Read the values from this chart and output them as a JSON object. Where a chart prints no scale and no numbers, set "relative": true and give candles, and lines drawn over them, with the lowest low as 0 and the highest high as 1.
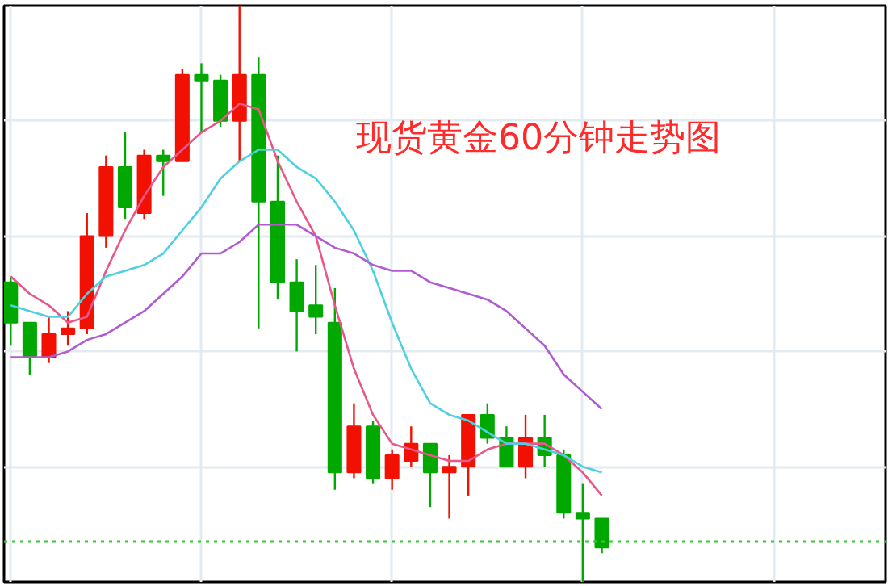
{
  "chart_data": {
    "type": "candlestick",
    "title": "现货黄金60分钟走势图",
    "relative": true,
    "grid": true,
    "categories": [
      null,
      null,
      null,
      null,
      null,
      null,
      null,
      null,
      null,
      null,
      null,
      null,
      null,
      null,
      null,
      null,
      null,
      null,
      null,
      null,
      null,
      null,
      null,
      null,
      null,
      null,
      null,
      null,
      null,
      null,
      null,
      null
    ],
    "ohlc": [
      [
        0.52,
        0.53,
        0.41,
        0.45
      ],
      [
        0.45,
        0.45,
        0.36,
        0.39
      ],
      [
        0.39,
        0.46,
        0.38,
        0.43
      ],
      [
        0.43,
        0.47,
        0.41,
        0.44
      ],
      [
        0.44,
        0.64,
        0.43,
        0.6
      ],
      [
        0.6,
        0.74,
        0.58,
        0.72
      ],
      [
        0.72,
        0.78,
        0.63,
        0.65
      ],
      [
        0.64,
        0.75,
        0.63,
        0.74
      ],
      [
        0.74,
        0.75,
        0.67,
        0.73
      ],
      [
        0.73,
        0.89,
        0.73,
        0.88
      ],
      [
        0.88,
        0.9,
        0.78,
        0.87
      ],
      [
        0.87,
        0.88,
        0.79,
        0.8
      ],
      [
        0.8,
        1.0,
        0.73,
        0.88
      ],
      [
        0.88,
        0.91,
        0.44,
        0.66
      ],
      [
        0.66,
        0.74,
        0.49,
        0.52
      ],
      [
        0.52,
        0.56,
        0.4,
        0.47
      ],
      [
        0.48,
        0.55,
        0.43,
        0.46
      ],
      [
        0.45,
        0.51,
        0.16,
        0.19
      ],
      [
        0.19,
        0.31,
        0.18,
        0.27
      ],
      [
        0.27,
        0.28,
        0.17,
        0.18
      ],
      [
        0.18,
        0.23,
        0.16,
        0.22
      ],
      [
        0.21,
        0.27,
        0.2,
        0.24
      ],
      [
        0.24,
        0.24,
        0.13,
        0.19
      ],
      [
        0.19,
        0.22,
        0.11,
        0.2
      ],
      [
        0.2,
        0.29,
        0.15,
        0.29
      ],
      [
        0.29,
        0.31,
        0.24,
        0.25
      ],
      [
        0.25,
        0.27,
        0.2,
        0.2
      ],
      [
        0.2,
        0.29,
        0.18,
        0.25
      ],
      [
        0.25,
        0.29,
        0.2,
        0.22
      ],
      [
        0.22,
        0.23,
        0.11,
        0.12
      ],
      [
        0.12,
        0.17,
        0.0,
        0.11
      ],
      [
        0.11,
        0.11,
        0.05,
        0.06
      ]
    ],
    "colors": [
      "#00a800",
      "#00a800",
      "#f21100",
      "#f21100",
      "#f21100",
      "#f21100",
      "#00a800",
      "#f21100",
      "#00a800",
      "#f21100",
      "#00a800",
      "#00a800",
      "#f21100",
      "#00a800",
      "#00a800",
      "#00a800",
      "#00a800",
      "#00a800",
      "#f21100",
      "#00a800",
      "#f21100",
      "#f21100",
      "#00a800",
      "#f21100",
      "#f21100",
      "#00a800",
      "#00a800",
      "#f21100",
      "#00a800",
      "#00a800",
      "#00a800",
      "#00a800"
    ],
    "series": [
      {
        "type": "line",
        "color": "#e8578a",
        "values": [
          0.53,
          0.5,
          0.48,
          0.45,
          0.46,
          0.54,
          0.61,
          0.67,
          0.72,
          0.75,
          0.78,
          0.8,
          0.83,
          0.82,
          0.73,
          0.66,
          0.6,
          0.48,
          0.37,
          0.29,
          0.24,
          0.23,
          0.22,
          0.21,
          0.21,
          0.23,
          0.24,
          0.24,
          0.24,
          0.22,
          0.19,
          0.15
        ]
      },
      {
        "type": "line",
        "color": "#4fd0e0",
        "values": [
          0.48,
          0.47,
          0.46,
          0.46,
          0.5,
          0.53,
          0.54,
          0.55,
          0.57,
          0.61,
          0.65,
          0.7,
          0.73,
          0.75,
          0.75,
          0.72,
          0.7,
          0.66,
          0.61,
          0.54,
          0.45,
          0.37,
          0.31,
          0.29,
          0.28,
          0.26,
          0.24,
          0.24,
          0.23,
          0.22,
          0.2,
          0.19
        ]
      },
      {
        "type": "line",
        "color": "#b05cd0",
        "values": [
          0.39,
          0.39,
          0.39,
          0.4,
          0.42,
          0.43,
          0.45,
          0.47,
          0.5,
          0.53,
          0.57,
          0.57,
          0.59,
          0.62,
          0.62,
          0.62,
          0.6,
          0.58,
          0.57,
          0.55,
          0.54,
          0.54,
          0.52,
          0.51,
          0.5,
          0.49,
          0.47,
          0.44,
          0.41,
          0.36,
          0.33,
          0.3
        ]
      }
    ],
    "ref_lines": [
      {
        "axis": "y",
        "value": 0.07,
        "color": "#33cc33",
        "line_style": "dotted"
      }
    ]
  }
}
